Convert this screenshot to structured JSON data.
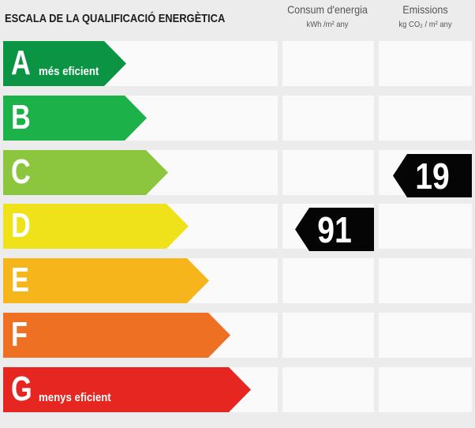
{
  "title": "ESCALA DE LA QUALIFICACIÓ ENERGÈTICA",
  "columns": {
    "energy": {
      "heading": "Consum d'energia",
      "unit": "kWh /m² any"
    },
    "emissions": {
      "heading": "Emissions",
      "unit": "kg CO₂ / m² any"
    }
  },
  "rows": [
    {
      "letter": "A",
      "sub": "més eficient",
      "color": "#0a9444"
    },
    {
      "letter": "B",
      "sub": "",
      "color": "#1db14a"
    },
    {
      "letter": "C",
      "sub": "",
      "color": "#8cc63e"
    },
    {
      "letter": "D",
      "sub": "",
      "color": "#f0e21a"
    },
    {
      "letter": "E",
      "sub": "",
      "color": "#f6b51a"
    },
    {
      "letter": "F",
      "sub": "",
      "color": "#ee7123"
    },
    {
      "letter": "G",
      "sub": "menys eficient",
      "color": "#e62620"
    }
  ],
  "ratings": {
    "energy": {
      "value": "91",
      "class": "D"
    },
    "emissions": {
      "value": "19",
      "class": "C"
    }
  }
}
